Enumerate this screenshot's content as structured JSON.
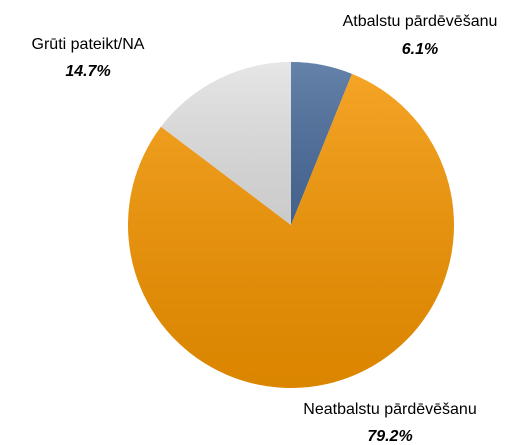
{
  "chart_data": {
    "type": "pie",
    "categories": [
      "Atbalstu pārdēvēšanu",
      "Neatbalstu pārdēvēšanu",
      "Grūti pateikt/NA"
    ],
    "values": [
      6.1,
      79.2,
      14.7
    ],
    "value_labels": [
      "6.1%",
      "79.2%",
      "14.7%"
    ],
    "colors": [
      "#4a6c9b",
      "#f39400",
      "#e2e2e2"
    ]
  }
}
